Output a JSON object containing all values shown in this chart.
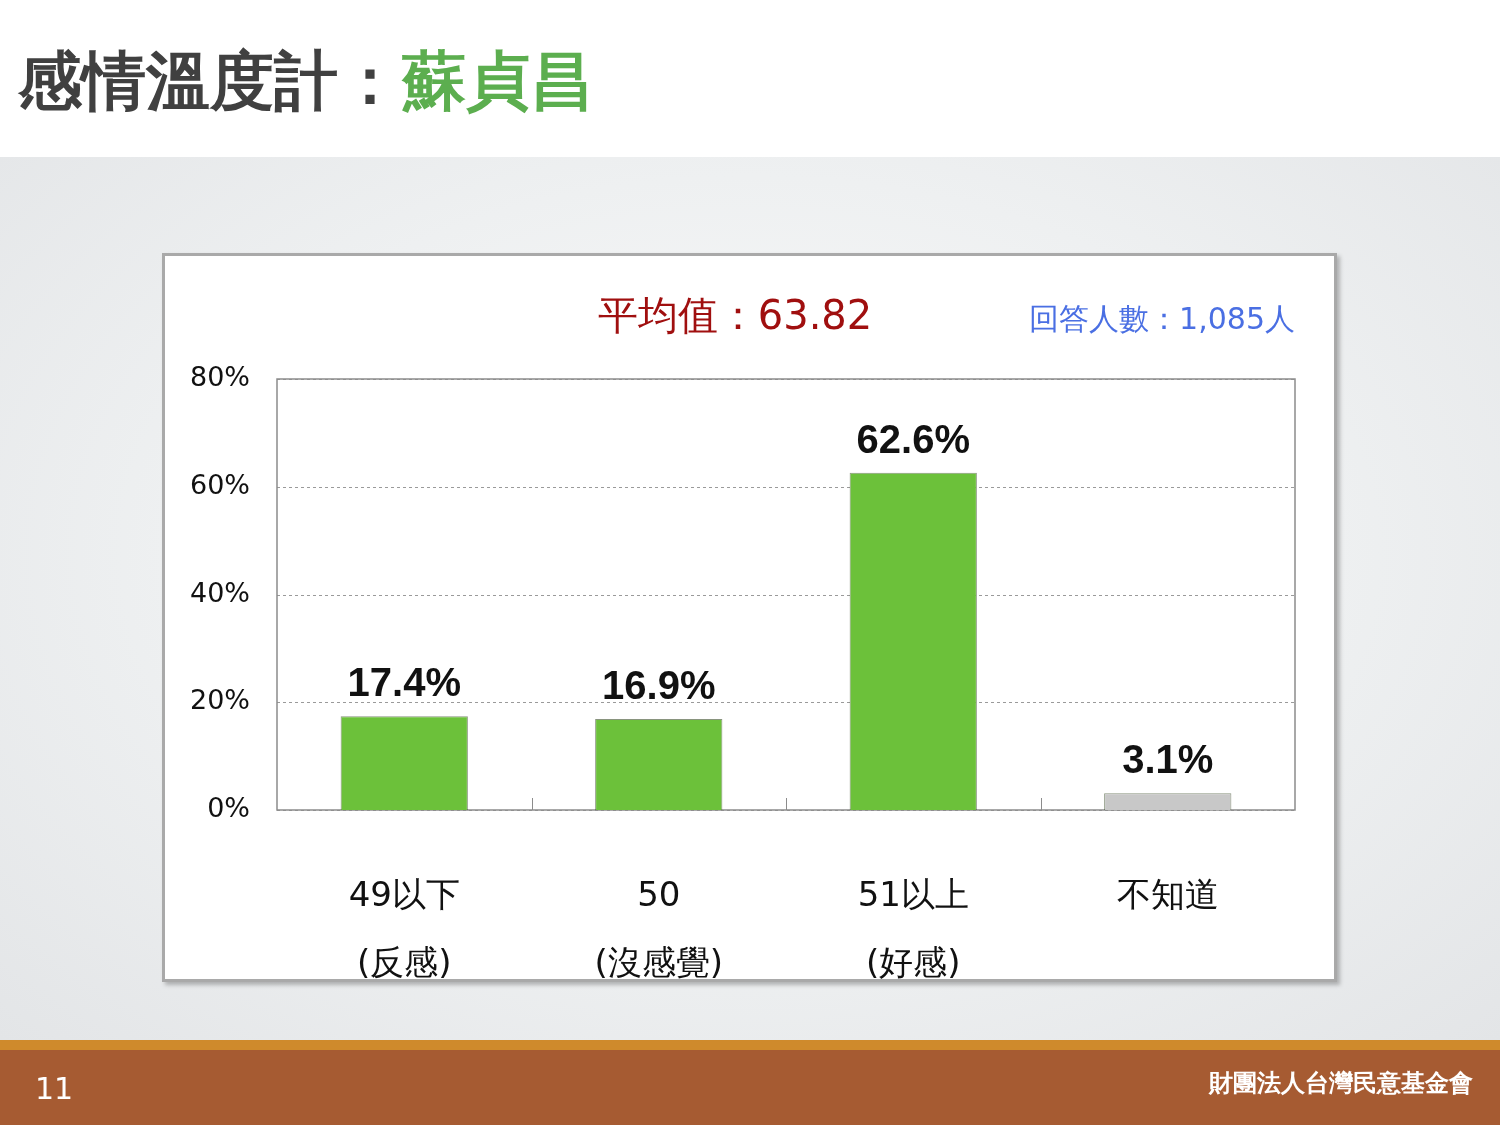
{
  "chart_data": {
    "type": "bar",
    "title": "感情溫度計：蘇貞昌",
    "annotations": [
      "平均值：63.82",
      "回答人數：1,085人",
      "11",
      "財團法人台灣民意基金會"
    ],
    "categories": [
      "49以下\n(反感)",
      "50\n(沒感覺)",
      "51以上\n(好感)",
      "不知道"
    ],
    "values": [
      17.4,
      16.9,
      62.6,
      3.1
    ],
    "colors": [
      "#6cc13a",
      "#6cc13a",
      "#6cc13a",
      "#c8c8c8"
    ],
    "ylim": [
      0,
      80
    ],
    "yticks": [
      {
        "value": 0,
        "label": "0%"
      },
      {
        "value": 20,
        "label": "20%"
      },
      {
        "value": 40,
        "label": "40%"
      },
      {
        "value": 60,
        "label": "60%"
      },
      {
        "value": 80,
        "label": "80%"
      }
    ],
    "grid": "y",
    "value_labels": [
      "17.4%",
      "16.9%",
      "62.6%",
      "3.1%"
    ]
  }
}
